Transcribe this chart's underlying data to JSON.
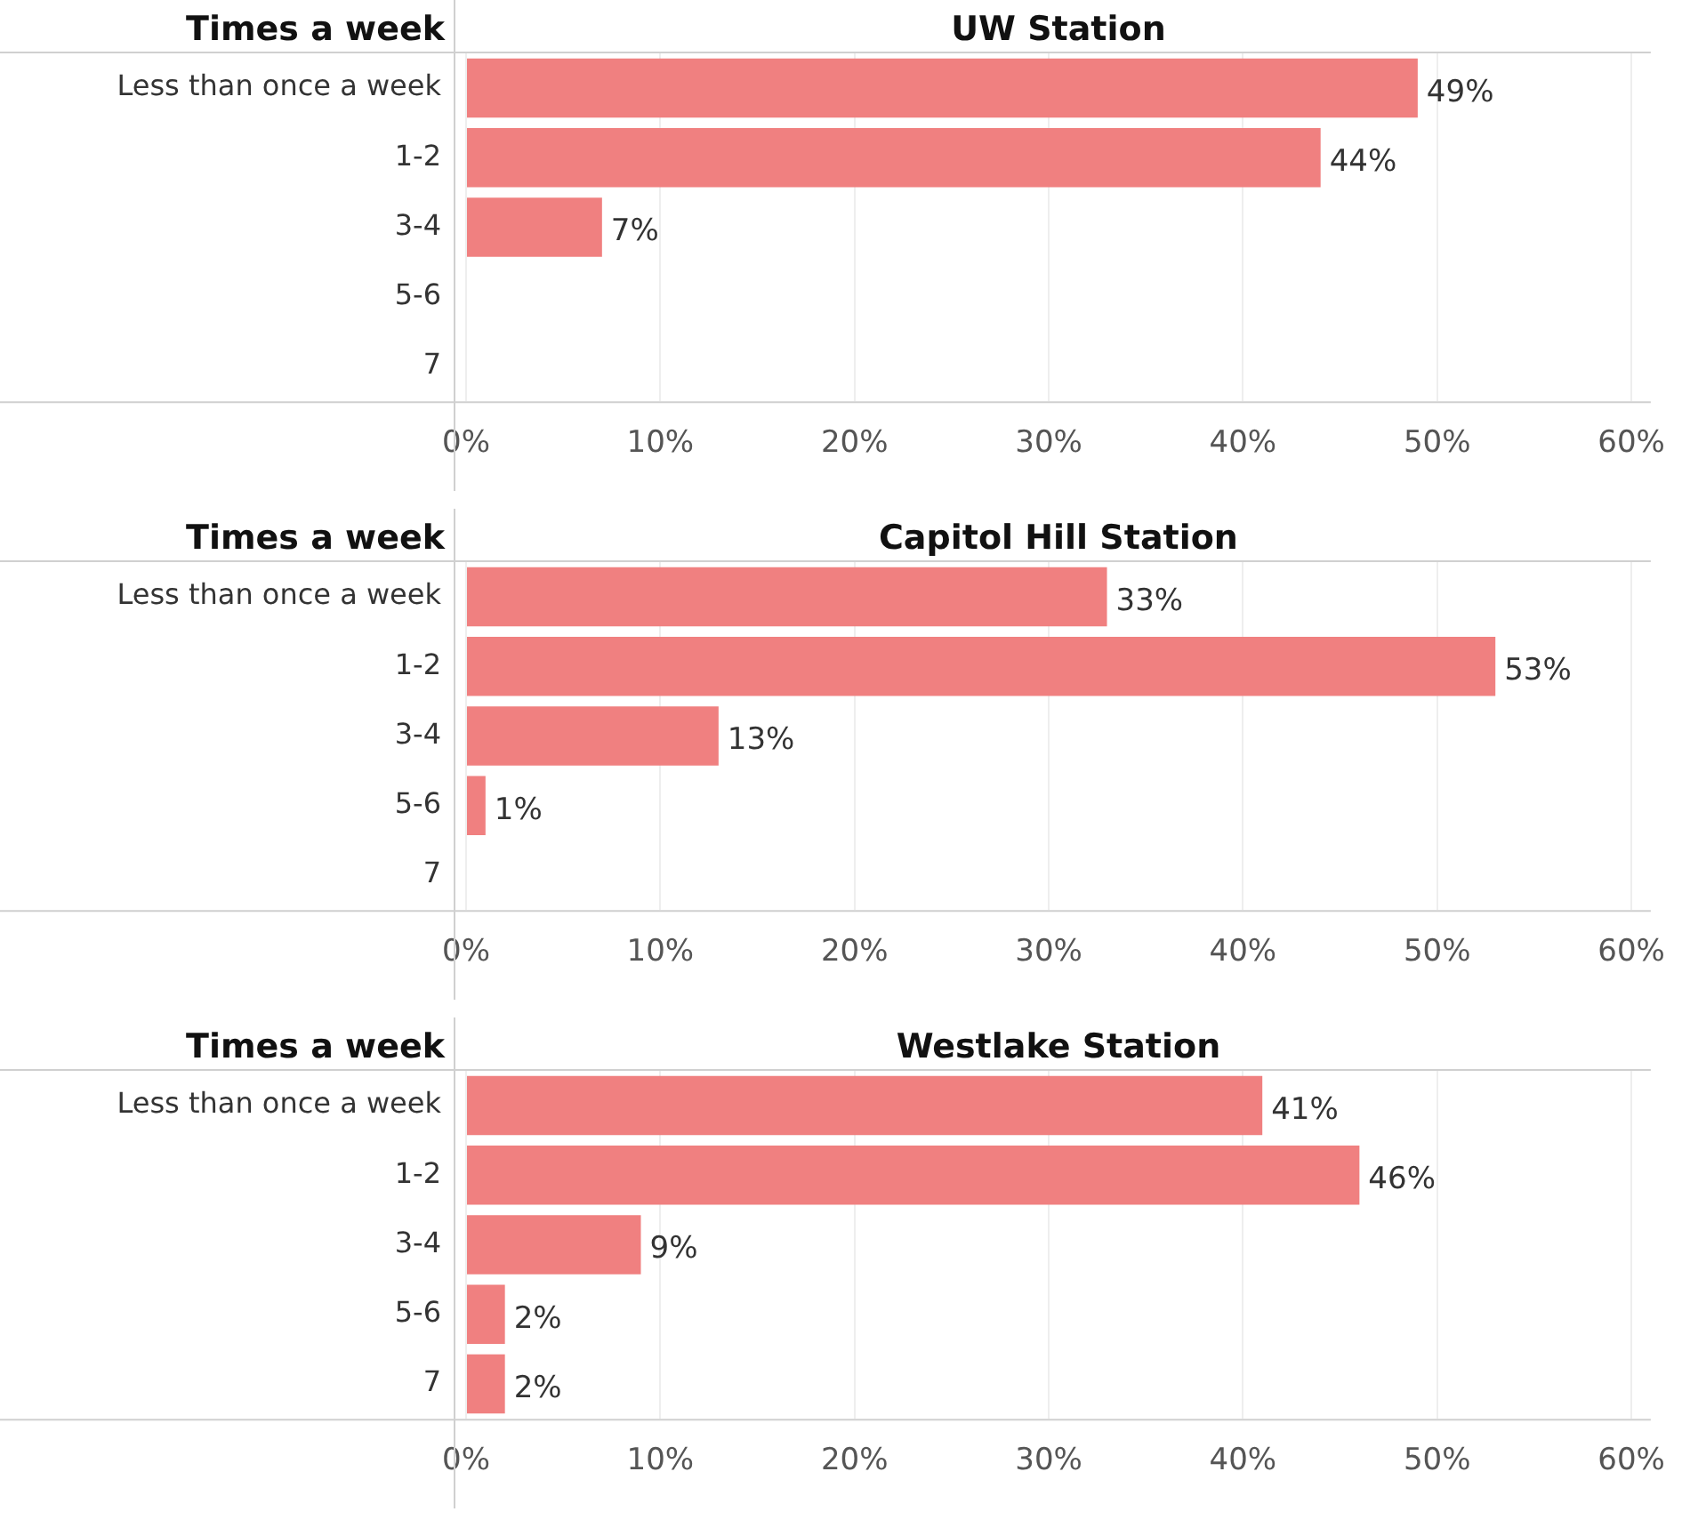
{
  "chart_data": [
    {
      "type": "bar",
      "orientation": "horizontal",
      "title": "UW Station",
      "ylabel": "Times a week",
      "categories": [
        "Less than once a week",
        "1-2",
        "3-4",
        "5-6",
        "7"
      ],
      "values": [
        49,
        44,
        7,
        null,
        null
      ],
      "value_labels": [
        "49%",
        "44%",
        "7%",
        null,
        null
      ],
      "color": "#f08080",
      "xlim": [
        0,
        61
      ],
      "xticks": [
        {
          "value": 0,
          "label": "0%"
        },
        {
          "value": 10,
          "label": "10%"
        },
        {
          "value": 20,
          "label": "20%"
        },
        {
          "value": 30,
          "label": "30%"
        },
        {
          "value": 40,
          "label": "40%"
        },
        {
          "value": 50,
          "label": "50%"
        },
        {
          "value": 60,
          "label": "60%"
        }
      ],
      "grid": "x",
      "legend": false
    },
    {
      "type": "bar",
      "orientation": "horizontal",
      "title": "Capitol Hill Station",
      "ylabel": "Times a week",
      "categories": [
        "Less than once a week",
        "1-2",
        "3-4",
        "5-6",
        "7"
      ],
      "values": [
        33,
        53,
        13,
        1,
        null
      ],
      "value_labels": [
        "33%",
        "53%",
        "13%",
        "1%",
        null
      ],
      "color": "#f08080",
      "xlim": [
        0,
        61
      ],
      "xticks": [
        {
          "value": 0,
          "label": "0%"
        },
        {
          "value": 10,
          "label": "10%"
        },
        {
          "value": 20,
          "label": "20%"
        },
        {
          "value": 30,
          "label": "30%"
        },
        {
          "value": 40,
          "label": "40%"
        },
        {
          "value": 50,
          "label": "50%"
        },
        {
          "value": 60,
          "label": "60%"
        }
      ],
      "grid": "x",
      "legend": false
    },
    {
      "type": "bar",
      "orientation": "horizontal",
      "title": "Westlake Station",
      "ylabel": "Times a week",
      "categories": [
        "Less than once a week",
        "1-2",
        "3-4",
        "5-6",
        "7"
      ],
      "values": [
        41,
        46,
        9,
        2,
        2
      ],
      "value_labels": [
        "41%",
        "46%",
        "9%",
        "2%",
        "2%"
      ],
      "color": "#f08080",
      "xlim": [
        0,
        61
      ],
      "xticks": [
        {
          "value": 0,
          "label": "0%"
        },
        {
          "value": 10,
          "label": "10%"
        },
        {
          "value": 20,
          "label": "20%"
        },
        {
          "value": 30,
          "label": "30%"
        },
        {
          "value": 40,
          "label": "40%"
        },
        {
          "value": 50,
          "label": "50%"
        },
        {
          "value": 60,
          "label": "60%"
        }
      ],
      "grid": "x",
      "legend": false
    }
  ]
}
